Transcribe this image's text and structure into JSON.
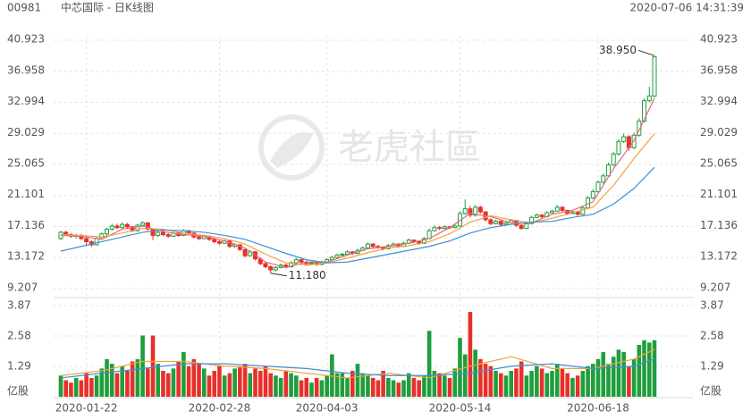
{
  "chart_data": {
    "type": "candlestick",
    "code": "00981",
    "title": "中芯国际 - 日K线图",
    "timestamp": "2020-07-06 14:31:39",
    "watermark": "老虎社區",
    "up_color": "#1f9e3c",
    "down_color": "#e8302a",
    "grid": true,
    "categories": [
      null,
      null,
      null,
      null,
      null,
      "2020-01-22",
      null,
      null,
      null,
      null,
      null,
      null,
      null,
      null,
      null,
      null,
      null,
      null,
      null,
      null,
      null,
      null,
      null,
      null,
      null,
      null,
      null,
      null,
      null,
      null,
      null,
      "2020-02-28",
      null,
      null,
      null,
      null,
      null,
      null,
      null,
      null,
      null,
      null,
      null,
      null,
      null,
      null,
      null,
      null,
      null,
      null,
      null,
      null,
      "2020-04-03",
      null,
      null,
      null,
      null,
      null,
      null,
      null,
      null,
      null,
      null,
      null,
      null,
      null,
      null,
      null,
      null,
      null,
      null,
      null,
      null,
      null,
      null,
      null,
      null,
      null,
      "2020-05-14",
      null,
      null,
      null,
      null,
      null,
      null,
      null,
      null,
      null,
      null,
      null,
      null,
      null,
      null,
      null,
      null,
      null,
      null,
      null,
      null,
      null,
      null,
      null,
      null,
      null,
      null,
      "2020-06-18",
      null,
      null,
      null,
      null,
      null,
      null,
      null,
      null,
      null,
      null,
      null
    ],
    "candles": [
      [
        15.6,
        16.6,
        15.4,
        16.4
      ],
      [
        16.4,
        16.6,
        15.9,
        16.1
      ],
      [
        16.1,
        16.3,
        15.7,
        15.9
      ],
      [
        15.9,
        16.2,
        15.6,
        16.0
      ],
      [
        16.0,
        16.2,
        15.4,
        15.6
      ],
      [
        15.6,
        15.8,
        14.8,
        15.2
      ],
      [
        15.2,
        15.4,
        14.5,
        14.8
      ],
      [
        14.8,
        15.8,
        14.7,
        15.6
      ],
      [
        15.6,
        16.4,
        15.5,
        16.2
      ],
      [
        16.2,
        17.0,
        16.0,
        16.8
      ],
      [
        16.8,
        17.5,
        16.6,
        17.2
      ],
      [
        17.2,
        17.5,
        16.8,
        17.0
      ],
      [
        17.0,
        17.7,
        16.9,
        17.4
      ],
      [
        17.4,
        17.6,
        16.9,
        17.1
      ],
      [
        17.1,
        17.2,
        16.4,
        16.6
      ],
      [
        16.6,
        17.5,
        16.5,
        17.3
      ],
      [
        17.3,
        17.8,
        17.1,
        17.6
      ],
      [
        17.6,
        17.7,
        16.6,
        16.8
      ],
      [
        16.8,
        16.9,
        15.4,
        16.0
      ],
      [
        16.0,
        16.6,
        15.8,
        16.4
      ],
      [
        16.4,
        16.6,
        15.9,
        16.1
      ],
      [
        16.1,
        16.3,
        15.7,
        15.9
      ],
      [
        15.9,
        16.5,
        15.8,
        16.3
      ],
      [
        16.3,
        16.4,
        15.8,
        16.0
      ],
      [
        16.0,
        16.8,
        15.9,
        16.6
      ],
      [
        16.6,
        16.7,
        16.1,
        16.3
      ],
      [
        16.3,
        16.4,
        15.6,
        15.8
      ],
      [
        15.8,
        16.0,
        15.4,
        15.6
      ],
      [
        15.6,
        16.1,
        15.5,
        15.9
      ],
      [
        15.9,
        16.0,
        15.3,
        15.5
      ],
      [
        15.5,
        15.7,
        15.0,
        15.2
      ],
      [
        15.2,
        15.4,
        14.8,
        15.0
      ],
      [
        15.0,
        15.5,
        14.9,
        15.3
      ],
      [
        15.3,
        15.4,
        14.4,
        14.6
      ],
      [
        14.6,
        15.0,
        14.4,
        14.8
      ],
      [
        14.8,
        14.9,
        14.0,
        14.2
      ],
      [
        14.2,
        14.3,
        13.2,
        13.4
      ],
      [
        13.4,
        14.1,
        13.3,
        13.9
      ],
      [
        13.9,
        14.0,
        12.8,
        13.0
      ],
      [
        13.0,
        13.2,
        12.2,
        12.4
      ],
      [
        12.4,
        12.6,
        11.8,
        12.0
      ],
      [
        12.0,
        12.2,
        11.18,
        11.6
      ],
      [
        11.6,
        12.1,
        11.4,
        11.9
      ],
      [
        11.9,
        12.4,
        11.8,
        12.2
      ],
      [
        12.2,
        12.4,
        11.8,
        12.0
      ],
      [
        12.0,
        12.7,
        11.9,
        12.5
      ],
      [
        12.5,
        13.1,
        12.4,
        12.9
      ],
      [
        12.9,
        13.0,
        12.4,
        12.6
      ],
      [
        12.6,
        12.8,
        12.2,
        12.4
      ],
      [
        12.4,
        12.7,
        12.3,
        12.5
      ],
      [
        12.5,
        12.6,
        12.1,
        12.3
      ],
      [
        12.3,
        12.8,
        12.2,
        12.6
      ],
      [
        12.6,
        13.1,
        12.5,
        12.9
      ],
      [
        12.9,
        13.4,
        12.8,
        13.2
      ],
      [
        13.2,
        13.7,
        13.1,
        13.5
      ],
      [
        13.5,
        13.8,
        13.3,
        13.6
      ],
      [
        13.6,
        14.1,
        13.5,
        13.9
      ],
      [
        13.9,
        14.0,
        13.5,
        13.7
      ],
      [
        13.7,
        14.3,
        13.6,
        14.1
      ],
      [
        14.1,
        14.6,
        14.0,
        14.4
      ],
      [
        14.4,
        15.1,
        14.3,
        14.9
      ],
      [
        14.9,
        15.0,
        14.4,
        14.6
      ],
      [
        14.6,
        14.8,
        14.3,
        14.5
      ],
      [
        14.5,
        14.6,
        14.1,
        14.3
      ],
      [
        14.3,
        14.9,
        14.2,
        14.7
      ],
      [
        14.7,
        15.1,
        14.6,
        14.9
      ],
      [
        14.9,
        15.0,
        14.4,
        14.6
      ],
      [
        14.6,
        15.2,
        14.5,
        15.0
      ],
      [
        15.0,
        15.6,
        14.9,
        15.4
      ],
      [
        15.4,
        15.5,
        15.0,
        15.2
      ],
      [
        15.2,
        15.3,
        14.8,
        15.0
      ],
      [
        15.0,
        15.8,
        14.9,
        15.6
      ],
      [
        15.6,
        16.9,
        15.5,
        16.6
      ],
      [
        16.6,
        17.3,
        16.5,
        17.0
      ],
      [
        17.0,
        17.2,
        16.7,
        16.9
      ],
      [
        16.9,
        17.3,
        16.8,
        17.1
      ],
      [
        17.1,
        17.2,
        16.8,
        17.0
      ],
      [
        17.0,
        17.4,
        16.9,
        17.2
      ],
      [
        17.2,
        19.1,
        17.1,
        18.8
      ],
      [
        18.8,
        20.6,
        18.6,
        19.4
      ],
      [
        19.4,
        19.8,
        18.3,
        18.6
      ],
      [
        18.6,
        19.9,
        18.4,
        19.6
      ],
      [
        19.6,
        19.8,
        18.8,
        19.0
      ],
      [
        19.0,
        19.1,
        17.8,
        18.0
      ],
      [
        18.0,
        18.2,
        17.3,
        17.5
      ],
      [
        17.5,
        18.0,
        17.4,
        17.8
      ],
      [
        17.8,
        17.9,
        17.2,
        17.4
      ],
      [
        17.4,
        17.8,
        17.3,
        17.6
      ],
      [
        17.6,
        18.1,
        17.5,
        17.9
      ],
      [
        17.9,
        18.0,
        17.1,
        17.3
      ],
      [
        17.3,
        17.4,
        16.7,
        16.9
      ],
      [
        16.9,
        17.7,
        16.8,
        17.5
      ],
      [
        17.5,
        18.5,
        17.4,
        18.3
      ],
      [
        18.3,
        18.8,
        18.2,
        18.6
      ],
      [
        18.6,
        18.7,
        18.2,
        18.4
      ],
      [
        18.4,
        19.1,
        18.3,
        18.9
      ],
      [
        18.9,
        19.3,
        18.8,
        19.1
      ],
      [
        19.1,
        19.9,
        19.0,
        19.6
      ],
      [
        19.6,
        19.7,
        19.0,
        19.2
      ],
      [
        19.2,
        19.3,
        18.6,
        18.8
      ],
      [
        18.8,
        19.2,
        18.7,
        19.0
      ],
      [
        19.0,
        19.1,
        18.5,
        18.7
      ],
      [
        18.7,
        19.7,
        18.6,
        19.5
      ],
      [
        19.5,
        21.0,
        19.4,
        20.8
      ],
      [
        20.8,
        21.9,
        20.6,
        21.6
      ],
      [
        21.6,
        23.0,
        21.4,
        22.8
      ],
      [
        22.8,
        23.9,
        22.6,
        23.6
      ],
      [
        23.6,
        25.3,
        23.4,
        25.0
      ],
      [
        25.0,
        26.7,
        24.8,
        26.4
      ],
      [
        26.4,
        28.3,
        26.2,
        28.0
      ],
      [
        28.0,
        29.0,
        27.8,
        28.6
      ],
      [
        28.6,
        28.8,
        26.8,
        27.2
      ],
      [
        27.2,
        29.1,
        27.0,
        28.8
      ],
      [
        28.8,
        31.0,
        28.6,
        30.6
      ],
      [
        30.6,
        33.5,
        30.4,
        33.2
      ],
      [
        33.2,
        35.0,
        33.0,
        33.8
      ],
      [
        33.8,
        38.95,
        33.6,
        38.8
      ]
    ],
    "ylim": [
      9.207,
      40.923
    ],
    "yticks": [
      9.207,
      13.172,
      17.136,
      21.101,
      25.065,
      29.029,
      32.994,
      36.958,
      40.923
    ],
    "annotations": [
      {
        "index": 41,
        "value": 11.18,
        "label": "11.180"
      },
      {
        "index": 116,
        "value": 38.95,
        "label": "38.950"
      }
    ],
    "lines": [
      {
        "color": "#e06a86",
        "x": [
          0,
          4,
          8,
          12,
          16,
          20,
          24,
          28,
          32,
          36,
          40,
          44,
          48,
          52,
          56,
          60,
          64,
          68,
          72,
          76,
          80,
          84,
          88,
          92,
          96,
          100,
          104,
          108,
          112,
          116
        ],
        "values": [
          16.0,
          15.9,
          15.5,
          16.8,
          17.2,
          16.5,
          16.1,
          15.9,
          15.3,
          14.4,
          12.6,
          11.9,
          12.6,
          12.6,
          13.5,
          14.3,
          14.6,
          15.0,
          15.6,
          17.0,
          18.8,
          18.4,
          17.6,
          17.6,
          18.7,
          19.2,
          20.3,
          24.5,
          28.1,
          33.5
        ]
      },
      {
        "color": "#f0a33a",
        "x": [
          0,
          4,
          8,
          12,
          16,
          20,
          24,
          28,
          32,
          36,
          40,
          44,
          48,
          52,
          56,
          60,
          64,
          68,
          72,
          76,
          80,
          84,
          88,
          92,
          96,
          100,
          104,
          108,
          112,
          116
        ],
        "values": [
          16.1,
          16.0,
          15.8,
          16.3,
          16.9,
          16.8,
          16.3,
          16.0,
          15.6,
          14.9,
          13.6,
          12.5,
          12.2,
          12.5,
          13.1,
          13.8,
          14.4,
          14.7,
          15.2,
          16.2,
          17.7,
          18.5,
          18.0,
          17.6,
          18.2,
          18.9,
          19.6,
          22.4,
          25.8,
          29.0
        ]
      },
      {
        "color": "#3f8fd8",
        "x": [
          0,
          4,
          8,
          12,
          16,
          20,
          24,
          28,
          32,
          36,
          40,
          44,
          48,
          52,
          56,
          60,
          64,
          68,
          72,
          76,
          80,
          84,
          88,
          92,
          96,
          100,
          104,
          108,
          112,
          116
        ],
        "values": [
          14.0,
          14.6,
          15.2,
          15.8,
          16.4,
          16.7,
          16.6,
          16.4,
          16.0,
          15.5,
          14.6,
          13.7,
          12.9,
          12.5,
          12.6,
          13.1,
          13.6,
          14.1,
          14.6,
          15.3,
          16.3,
          17.0,
          17.4,
          17.7,
          17.8,
          18.3,
          18.7,
          20.0,
          22.0,
          24.7
        ]
      }
    ],
    "volume": {
      "unit": "亿股",
      "ylim": [
        0,
        3.87
      ],
      "yticks": [
        1.29,
        2.58,
        3.87
      ],
      "values": [
        0.9,
        0.7,
        0.6,
        0.8,
        0.7,
        1.0,
        0.8,
        0.9,
        1.2,
        1.6,
        1.4,
        1.0,
        1.3,
        1.1,
        1.5,
        1.6,
        2.6,
        1.2,
        2.6,
        1.4,
        1.1,
        1.0,
        1.2,
        1.5,
        1.9,
        1.3,
        1.6,
        1.4,
        1.2,
        0.9,
        1.1,
        1.3,
        0.9,
        1.0,
        1.2,
        1.3,
        1.4,
        1.0,
        1.2,
        1.1,
        1.3,
        1.0,
        0.9,
        0.8,
        1.1,
        1.0,
        0.9,
        0.7,
        0.8,
        0.6,
        0.8,
        0.7,
        0.9,
        1.8,
        1.0,
        1.0,
        0.8,
        1.1,
        1.4,
        1.0,
        0.9,
        0.8,
        0.7,
        1.1,
        0.8,
        0.7,
        0.6,
        0.7,
        1.0,
        0.8,
        0.7,
        0.9,
        2.8,
        1.1,
        1.0,
        0.9,
        0.8,
        1.2,
        2.5,
        1.8,
        3.6,
        2.0,
        1.6,
        1.4,
        1.3,
        1.1,
        1.0,
        0.9,
        1.1,
        1.2,
        1.5,
        0.9,
        1.1,
        1.3,
        1.2,
        1.0,
        1.1,
        1.4,
        1.2,
        1.0,
        0.8,
        0.9,
        1.1,
        1.3,
        1.4,
        1.6,
        1.9,
        1.4,
        1.7,
        2.0,
        1.9,
        1.3,
        1.6,
        2.2,
        2.4,
        2.3,
        2.4
      ],
      "lines": [
        {
          "color": "#f0a33a",
          "x": [
            0,
            8,
            16,
            24,
            32,
            40,
            48,
            56,
            64,
            72,
            80,
            88,
            96,
            104,
            112,
            116
          ],
          "values": [
            0.9,
            1.1,
            1.5,
            1.5,
            1.3,
            1.2,
            1.0,
            0.8,
            1.0,
            0.8,
            1.3,
            1.7,
            1.2,
            1.2,
            1.6,
            2.0
          ]
        },
        {
          "color": "#3f8fd8",
          "x": [
            0,
            8,
            16,
            24,
            32,
            40,
            48,
            56,
            64,
            72,
            80,
            88,
            96,
            104,
            112,
            116
          ],
          "values": [
            0.8,
            1.0,
            1.2,
            1.4,
            1.4,
            1.3,
            1.2,
            1.0,
            0.9,
            0.9,
            1.0,
            1.3,
            1.4,
            1.2,
            1.3,
            1.6
          ]
        }
      ]
    }
  }
}
